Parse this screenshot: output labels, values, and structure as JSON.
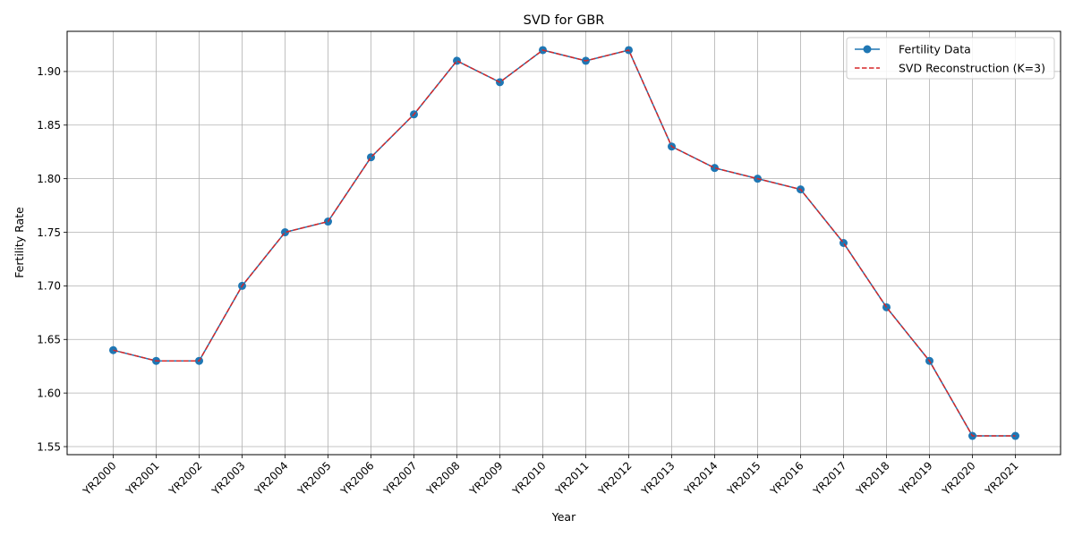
{
  "chart_data": {
    "type": "line",
    "title": "SVD for GBR",
    "xlabel": "Year",
    "ylabel": "Fertility Rate",
    "categories": [
      "YR2000",
      "YR2001",
      "YR2002",
      "YR2003",
      "YR2004",
      "YR2005",
      "YR2006",
      "YR2007",
      "YR2008",
      "YR2009",
      "YR2010",
      "YR2011",
      "YR2012",
      "YR2013",
      "YR2014",
      "YR2015",
      "YR2016",
      "YR2017",
      "YR2018",
      "YR2019",
      "YR2020",
      "YR2021"
    ],
    "series": [
      {
        "name": "Fertility Data",
        "color": "#1f77b4",
        "style": "solid-marker",
        "values": [
          1.64,
          1.63,
          1.63,
          1.7,
          1.75,
          1.76,
          1.82,
          1.86,
          1.91,
          1.89,
          1.92,
          1.91,
          1.92,
          1.83,
          1.81,
          1.8,
          1.79,
          1.74,
          1.68,
          1.63,
          1.56,
          1.56
        ]
      },
      {
        "name": "SVD Reconstruction (K=3)",
        "color": "#d62728",
        "style": "dashed",
        "values": [
          1.64,
          1.63,
          1.63,
          1.7,
          1.75,
          1.76,
          1.82,
          1.86,
          1.91,
          1.89,
          1.92,
          1.91,
          1.92,
          1.83,
          1.81,
          1.8,
          1.79,
          1.74,
          1.68,
          1.63,
          1.56,
          1.56
        ]
      }
    ],
    "ylim": [
      1.5425,
      1.9375
    ],
    "yticks": [
      "1.55",
      "1.60",
      "1.65",
      "1.70",
      "1.75",
      "1.80",
      "1.85",
      "1.90"
    ],
    "grid": true,
    "legend_position": "top-right"
  }
}
